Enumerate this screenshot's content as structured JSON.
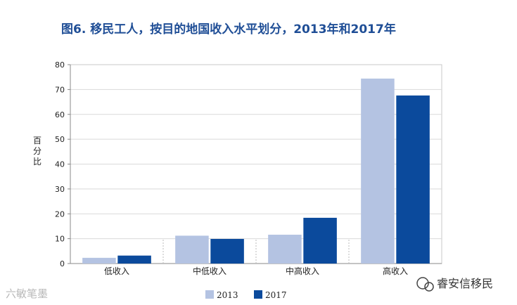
{
  "chart_data": {
    "type": "bar",
    "title": "图6.  移民工人，按目的地国收入水平划分，2013年和2017年",
    "ylabel": "百分比",
    "xlabel": "",
    "categories": [
      "低收入",
      "中低收入",
      "中高收入",
      "高收入"
    ],
    "series": [
      {
        "name": "2013",
        "values": [
          2.3,
          11.2,
          11.6,
          74.4
        ],
        "color": "#b4c3e2"
      },
      {
        "name": "2017",
        "values": [
          3.2,
          9.9,
          18.4,
          67.6
        ],
        "color": "#0b4a9c"
      }
    ],
    "ylim": [
      0,
      80
    ],
    "yticks": [
      0,
      10,
      20,
      30,
      40,
      50,
      60,
      70,
      80
    ],
    "grid": true,
    "legend": "bottom"
  },
  "watermark_left": "六敏笔墨",
  "brand": "睿安信移民"
}
